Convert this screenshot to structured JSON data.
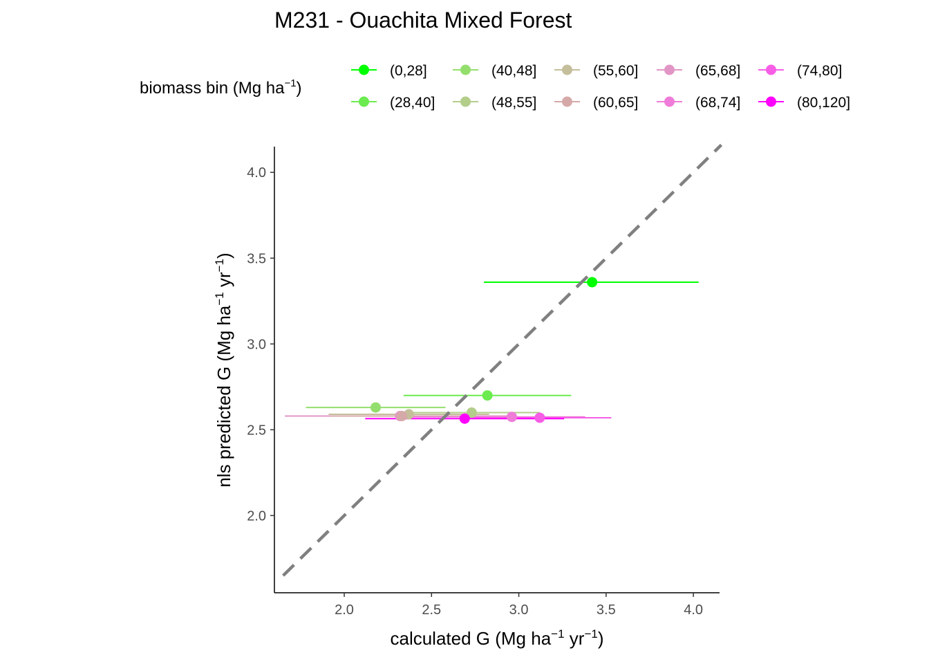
{
  "chart_data": {
    "type": "scatter",
    "title": "M231 - Ouachita Mixed Forest",
    "xlabel": {
      "base": "calculated G (Mg ha",
      "sup1": "−1",
      "mid": " yr",
      "sup2": "−1",
      "end": ")"
    },
    "ylabel": {
      "base": "nls predicted G (Mg ha",
      "sup1": "−1",
      "mid": " yr",
      "sup2": "−1",
      "end": ")"
    },
    "legend": {
      "title": {
        "base": "biomass bin (Mg ha",
        "sup": "−1",
        "end": ")"
      },
      "position": "top"
    },
    "xlim": [
      1.6,
      4.15
    ],
    "ylim": [
      1.55,
      4.15
    ],
    "x_ticks": [
      "2.0",
      "2.5",
      "3.0",
      "3.5",
      "4.0"
    ],
    "x_tick_values": [
      2.0,
      2.5,
      3.0,
      3.5,
      4.0
    ],
    "y_ticks": [
      "2.0",
      "2.5",
      "3.0",
      "3.5",
      "4.0"
    ],
    "y_tick_values": [
      2.0,
      2.5,
      3.0,
      3.5,
      4.0
    ],
    "reference_line": {
      "type": "identity",
      "style": "dashed",
      "color": "#808080"
    },
    "grid": false,
    "series": [
      {
        "name": "(0,28]",
        "color": "#00FF00",
        "x": 3.42,
        "y": 3.36,
        "xmin": 2.8,
        "xmax": 4.03
      },
      {
        "name": "(28,40]",
        "color": "#6BEB4F",
        "x": 2.82,
        "y": 2.7,
        "xmin": 2.34,
        "xmax": 3.3
      },
      {
        "name": "(40,48]",
        "color": "#94DE6D",
        "x": 2.18,
        "y": 2.63,
        "xmin": 1.78,
        "xmax": 2.58
      },
      {
        "name": "(48,55]",
        "color": "#B3CD8B",
        "x": 2.73,
        "y": 2.6,
        "xmin": 2.38,
        "xmax": 3.12
      },
      {
        "name": "(55,60]",
        "color": "#C4BE9B",
        "x": 2.37,
        "y": 2.59,
        "xmin": 1.91,
        "xmax": 2.83
      },
      {
        "name": "(60,65]",
        "color": "#D6A9A9",
        "x": 2.33,
        "y": 2.58,
        "xmin": 1.92,
        "xmax": 2.76
      },
      {
        "name": "(65,68]",
        "color": "#E296C6",
        "x": 2.32,
        "y": 2.58,
        "xmin": 1.66,
        "xmax": 2.98
      },
      {
        "name": "(68,74]",
        "color": "#EF7CD8",
        "x": 2.96,
        "y": 2.575,
        "xmin": 2.3,
        "xmax": 3.38
      },
      {
        "name": "(74,80]",
        "color": "#F75EE6",
        "x": 3.12,
        "y": 2.57,
        "xmin": 2.7,
        "xmax": 3.53
      },
      {
        "name": "(80,120]",
        "color": "#FF00FF",
        "x": 2.69,
        "y": 2.565,
        "xmin": 2.12,
        "xmax": 3.26
      }
    ]
  }
}
